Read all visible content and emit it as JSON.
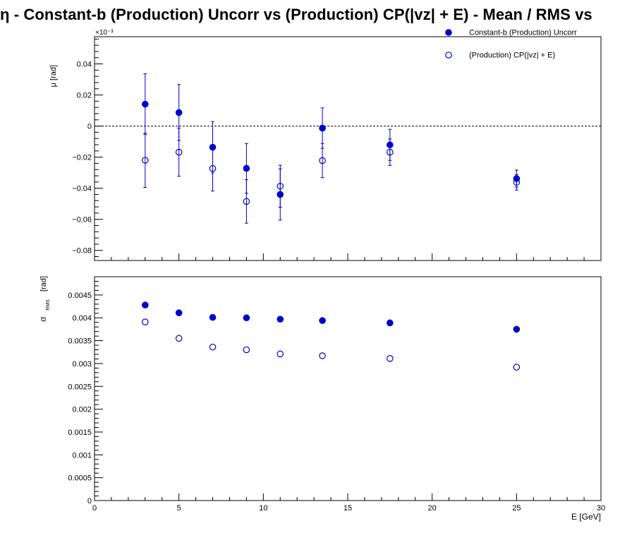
{
  "title": "η  -  Constant-b (Production) Uncorr vs (Production) CP(|vz| + E)  -  Mean / RMS vs",
  "colors": {
    "series": "#0000cc",
    "axis": "#000000"
  },
  "chart_data": [
    {
      "type": "scatter",
      "name": "mean",
      "ylabel": "μ  [rad]",
      "yexponent": "×10⁻³",
      "ylim": [
        -0.0865,
        0.0575
      ],
      "xlim": [
        0,
        30
      ],
      "yticks": [
        -0.08,
        -0.06,
        -0.04,
        -0.02,
        0,
        0.02,
        0.04
      ],
      "ytick_labels": [
        "−0.08",
        "−0.06",
        "−0.04",
        "−0.02",
        "0",
        "0.02",
        "0.04"
      ],
      "reference_line": 0,
      "legend_position": "top-right",
      "series": [
        {
          "name": "Constant-b (Production) Uncorr",
          "marker": "filled-circle",
          "x": [
            3,
            5,
            7,
            9,
            11,
            13.5,
            17.5,
            25
          ],
          "y": [
            0.0141,
            0.0087,
            -0.0136,
            -0.0272,
            -0.044,
            -0.0013,
            -0.0121,
            -0.0338
          ],
          "yerr": [
            0.0195,
            0.018,
            0.0165,
            0.016,
            0.0165,
            0.013,
            0.01,
            0.0055
          ]
        },
        {
          "name": "(Production) CP(|vz| + E)",
          "marker": "open-circle",
          "x": [
            3,
            5,
            7,
            9,
            11,
            13.5,
            17.5,
            25
          ],
          "y": [
            -0.022,
            -0.0168,
            -0.0273,
            -0.0485,
            -0.0387,
            -0.0222,
            -0.0168,
            -0.0362
          ],
          "yerr": [
            0.0175,
            0.0155,
            0.0145,
            0.014,
            0.0135,
            0.011,
            0.0085,
            0.005
          ]
        }
      ]
    },
    {
      "type": "scatter",
      "name": "rms",
      "ylabel": "σ",
      "ylabel_sub": "RMS",
      "ylabel_unit": "[rad]",
      "xlabel": "E  [GeV]",
      "ylim": [
        0,
        0.0049
      ],
      "xlim": [
        0,
        30
      ],
      "yticks": [
        0,
        0.0005,
        0.001,
        0.0015,
        0.002,
        0.0025,
        0.003,
        0.0035,
        0.004,
        0.0045
      ],
      "ytick_labels": [
        "0",
        "0.0005",
        "0.001",
        "0.0015",
        "0.002",
        "0.0025",
        "0.003",
        "0.0035",
        "0.004",
        "0.0045"
      ],
      "xticks": [
        0,
        5,
        10,
        15,
        20,
        25,
        30
      ],
      "xtick_labels": [
        "0",
        "5",
        "10",
        "15",
        "20",
        "25",
        "30"
      ],
      "series": [
        {
          "name": "Constant-b (Production) Uncorr",
          "marker": "filled-circle",
          "x": [
            3,
            5,
            7,
            9,
            11,
            13.5,
            17.5,
            25
          ],
          "y": [
            0.00428,
            0.00411,
            0.00401,
            0.004,
            0.00397,
            0.00394,
            0.00389,
            0.00375
          ]
        },
        {
          "name": "(Production) CP(|vz| + E)",
          "marker": "open-circle",
          "x": [
            3,
            5,
            7,
            9,
            11,
            13.5,
            17.5,
            25
          ],
          "y": [
            0.00391,
            0.00355,
            0.00336,
            0.0033,
            0.00321,
            0.00317,
            0.00311,
            0.00292
          ]
        }
      ]
    }
  ]
}
